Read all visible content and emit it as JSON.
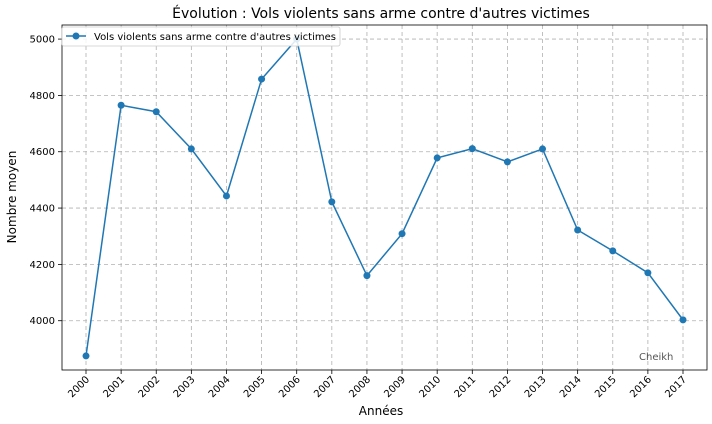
{
  "chart_data": {
    "type": "line",
    "title": "Évolution : Vols violents sans arme contre d'autres victimes",
    "xlabel": "Années",
    "ylabel": "Nombre moyen",
    "x": [
      "2000",
      "2001",
      "2002",
      "2003",
      "2004",
      "2005",
      "2006",
      "2007",
      "2008",
      "2009",
      "2010",
      "2011",
      "2012",
      "2013",
      "2014",
      "2015",
      "2016",
      "2017"
    ],
    "series": [
      {
        "name": "Vols violents sans arme contre d'autres victimes",
        "color": "#1f77b4",
        "values": [
          3875,
          4765,
          4742,
          4610,
          4443,
          4858,
          5000,
          4422,
          4160,
          4309,
          4578,
          4611,
          4564,
          4610,
          4322,
          4248,
          4170,
          4003
        ]
      }
    ],
    "ylim": [
      3825,
      5050
    ],
    "yticks": [
      "4000",
      "4200",
      "4400",
      "4600",
      "4800",
      "5000"
    ],
    "grid": true,
    "legend_position": "top-left",
    "annotation": "Cheikh"
  }
}
